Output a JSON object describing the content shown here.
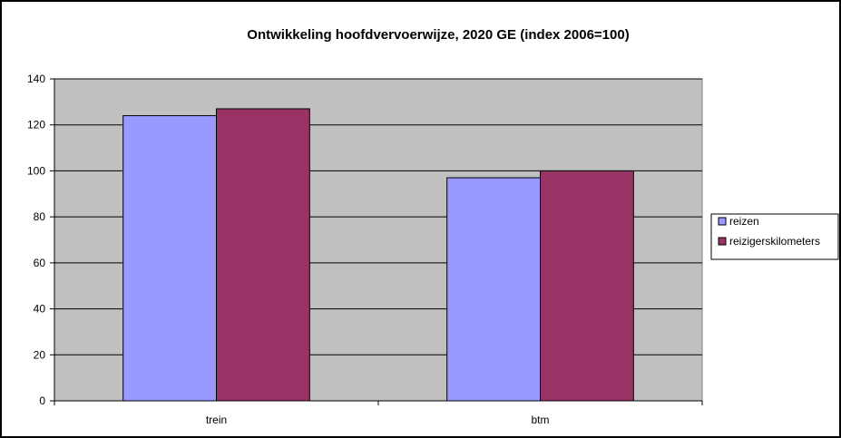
{
  "chart_data": {
    "type": "bar",
    "title": "Ontwikkeling hoofdvervoerwijze, 2020 GE (index 2006=100)",
    "xlabel": "",
    "ylabel": "",
    "categories": [
      "trein",
      "btm"
    ],
    "series": [
      {
        "name": "reizen",
        "values": [
          124,
          97
        ],
        "color": "#9999ff"
      },
      {
        "name": "reizigerskilometers",
        "values": [
          127,
          100
        ],
        "color": "#993366"
      }
    ],
    "ylim": [
      0,
      140
    ],
    "yticks": [
      0,
      20,
      40,
      60,
      80,
      100,
      120,
      140
    ],
    "ytick_labels": [
      "0",
      "20",
      "40",
      "60",
      "80",
      "100",
      "120",
      "140"
    ],
    "grid": true,
    "plot_background": "#c0c0c0",
    "legend_position": "right"
  }
}
